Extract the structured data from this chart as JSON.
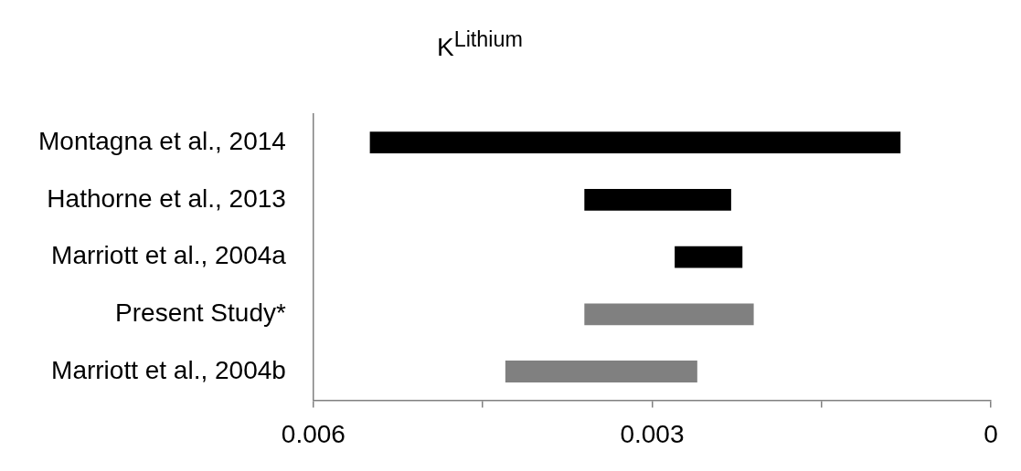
{
  "chart_data": {
    "type": "bar",
    "title": "K$^{Lithium}$",
    "orientation": "horizontal",
    "categories": [
      "Montagna et al., 2014",
      "Hathorne et al., 2013",
      "Marriott et al., 2004a",
      "Present Study*",
      "Marriott et al., 2004b"
    ],
    "base": [
      0.0008,
      0.0023,
      0.0022,
      0.0021,
      0.0026
    ],
    "values": [
      0.0047,
      0.0013,
      0.0006,
      0.0015,
      0.0017
    ],
    "colors": [
      "#000000",
      "#000000",
      "#000000",
      "#808080",
      "#808080"
    ],
    "xlim": [
      0.006,
      0
    ],
    "xticks": [
      0.006,
      {
        "value": 0.0045,
        "label": null
      },
      0.003,
      {
        "value": 0.0015,
        "label": null
      },
      0
    ],
    "grid": false
  }
}
